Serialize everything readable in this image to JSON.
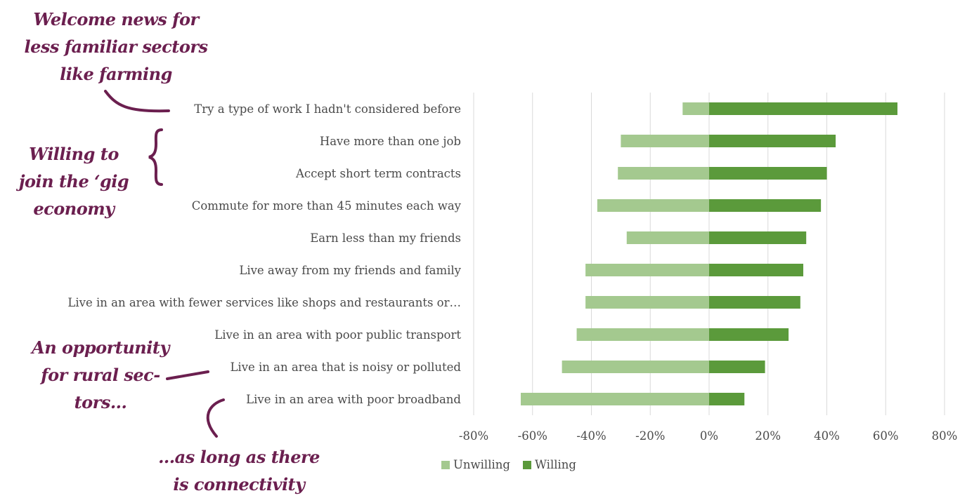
{
  "annotations": {
    "note_1": "Welcome news for less familiar sectors like farming",
    "note_1_lines": [
      "Welcome news for",
      "less familiar sectors",
      "like farming"
    ],
    "note_2_lines": [
      "Willing to",
      "join the ‘gig",
      "economy"
    ],
    "note_3_lines": [
      "An opportunity",
      "for rural sec-",
      "tors..."
    ],
    "note_4_lines": [
      "...as long as there",
      "is connectivity"
    ]
  },
  "colors": {
    "willing": "#5b9a3b",
    "unwilling": "#a4c98f",
    "annotation": "#6b1f4f",
    "gridline": "#d9d9d9",
    "text": "#4a4a4a"
  },
  "chart_data": {
    "type": "bar",
    "orientation": "horizontal",
    "stacked": "diverging",
    "categories": [
      "Try a type of work I hadn't considered before",
      "Have more than one job",
      "Accept short term contracts",
      "Commute for more than 45 minutes each way",
      "Earn less than my friends",
      "Live away from my friends and family",
      "Live in an area with fewer services like shops and restaurants or…",
      "Live in an area with poor public transport",
      "Live in an area that is noisy or polluted",
      "Live in an area with poor broadband"
    ],
    "series": [
      {
        "name": "Unwilling",
        "values": [
          -9,
          -30,
          -31,
          -38,
          -28,
          -42,
          -42,
          -45,
          -50,
          -64
        ]
      },
      {
        "name": "Willing",
        "values": [
          64,
          43,
          40,
          38,
          33,
          32,
          31,
          27,
          19,
          12
        ]
      }
    ],
    "xlim": [
      -80,
      80
    ],
    "xticks": [
      -80,
      -60,
      -40,
      -20,
      0,
      20,
      40,
      60,
      80
    ],
    "tick_labels": [
      "-80%",
      "-60%",
      "-40%",
      "-20%",
      "0%",
      "20%",
      "40%",
      "60%",
      "80%"
    ],
    "grid": true,
    "legend_position": "bottom"
  }
}
